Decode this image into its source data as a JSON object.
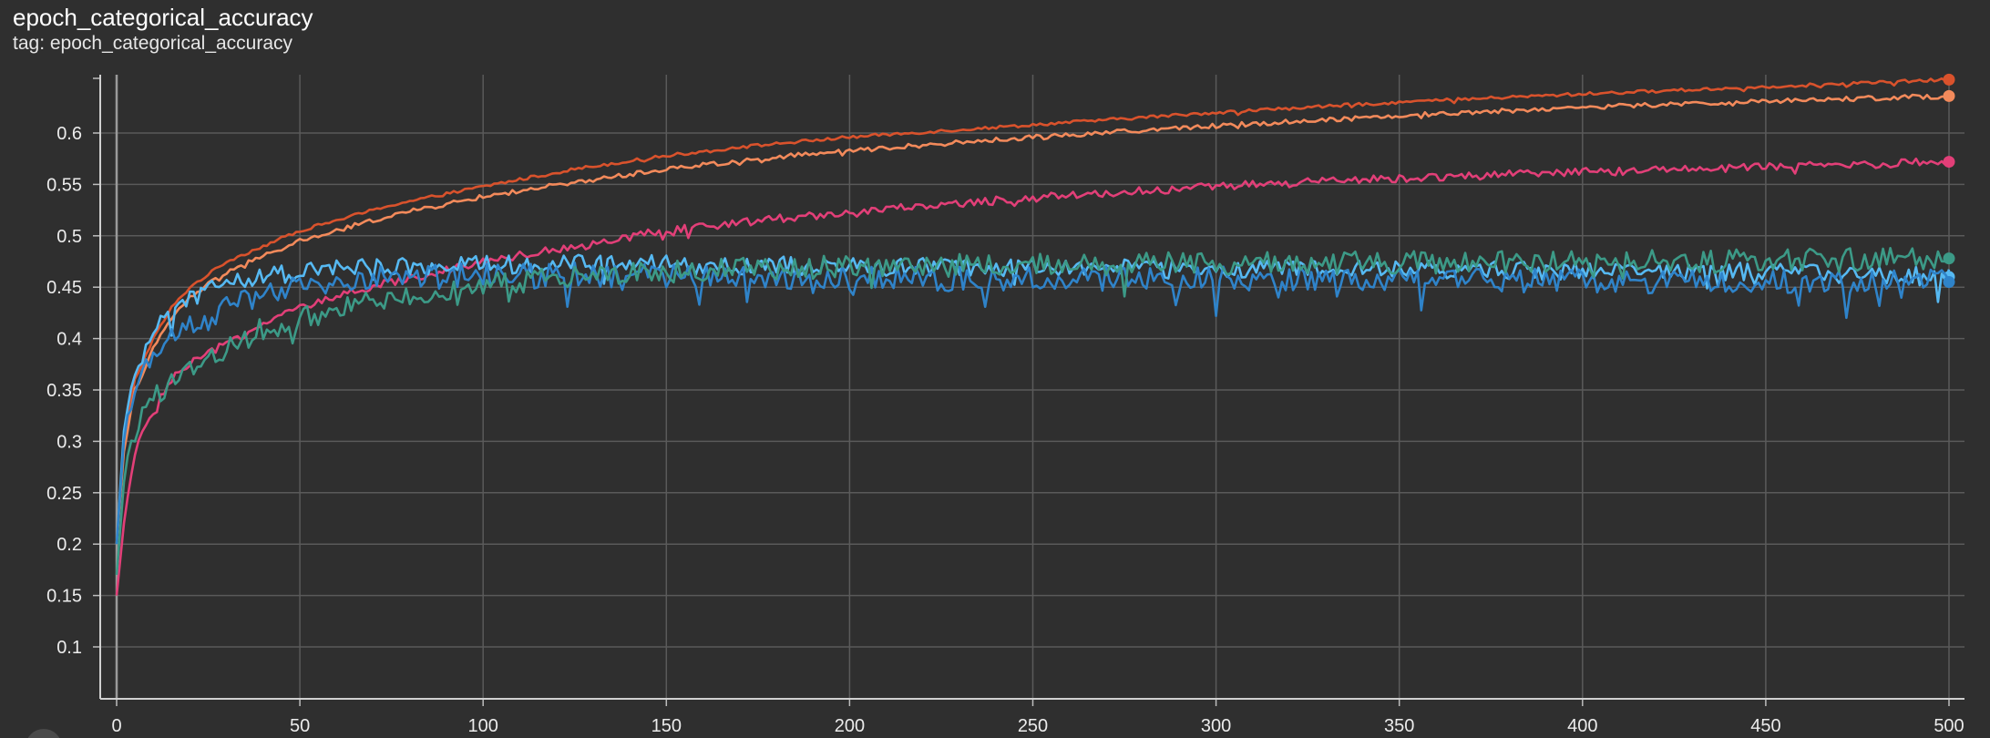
{
  "header": {
    "title": "epoch_categorical_accuracy",
    "tag_label": "tag: epoch_categorical_accuracy"
  },
  "chart_data": {
    "type": "line",
    "title": "epoch_categorical_accuracy",
    "xlabel": "",
    "ylabel": "",
    "xlim": [
      0,
      500
    ],
    "ylim": [
      0.05,
      0.65
    ],
    "x_ticks": [
      0,
      50,
      100,
      150,
      200,
      250,
      300,
      350,
      400,
      450,
      500
    ],
    "y_ticks": [
      0.1,
      0.15,
      0.2,
      0.25,
      0.3,
      0.35,
      0.4,
      0.45,
      0.5,
      0.55,
      0.6
    ],
    "y_tick_labels": [
      "0.1",
      "0.15",
      "0.2",
      "0.25",
      "0.3",
      "0.35",
      "0.4",
      "0.45",
      "0.5",
      "0.55",
      "0.6"
    ],
    "grid": true,
    "legend": "none",
    "series": [
      {
        "color": "#d9522c",
        "x": [
          0,
          2,
          5,
          10,
          15,
          20,
          30,
          40,
          50,
          60,
          75,
          100,
          125,
          150,
          175,
          200,
          250,
          300,
          350,
          400,
          450,
          500
        ],
        "values": [
          0.2,
          0.3,
          0.36,
          0.4,
          0.43,
          0.45,
          0.475,
          0.49,
          0.505,
          0.515,
          0.53,
          0.548,
          0.565,
          0.578,
          0.588,
          0.596,
          0.608,
          0.62,
          0.63,
          0.638,
          0.645,
          0.652
        ]
      },
      {
        "color": "#f38a5b",
        "x": [
          0,
          2,
          5,
          10,
          15,
          20,
          30,
          40,
          50,
          60,
          75,
          100,
          125,
          150,
          175,
          200,
          250,
          300,
          350,
          400,
          450,
          500
        ],
        "values": [
          0.2,
          0.29,
          0.35,
          0.39,
          0.42,
          0.44,
          0.465,
          0.48,
          0.495,
          0.505,
          0.52,
          0.538,
          0.552,
          0.565,
          0.575,
          0.583,
          0.596,
          0.607,
          0.617,
          0.625,
          0.631,
          0.636
        ]
      },
      {
        "color": "#e23f78",
        "x": [
          0,
          2,
          5,
          10,
          15,
          20,
          30,
          40,
          50,
          60,
          75,
          100,
          125,
          150,
          175,
          200,
          250,
          300,
          350,
          400,
          450,
          500
        ],
        "values": [
          0.15,
          0.22,
          0.29,
          0.33,
          0.36,
          0.375,
          0.395,
          0.415,
          0.43,
          0.44,
          0.455,
          0.475,
          0.49,
          0.505,
          0.515,
          0.523,
          0.537,
          0.548,
          0.556,
          0.562,
          0.567,
          0.572
        ]
      },
      {
        "color": "#56b9f2",
        "x": [
          0,
          2,
          5,
          10,
          15,
          20,
          30,
          40,
          50,
          60,
          75,
          100,
          125,
          150,
          175,
          200,
          250,
          300,
          350,
          400,
          450,
          500
        ],
        "values": [
          0.2,
          0.31,
          0.36,
          0.41,
          0.43,
          0.44,
          0.455,
          0.46,
          0.465,
          0.468,
          0.47,
          0.472,
          0.473,
          0.472,
          0.471,
          0.47,
          0.469,
          0.468,
          0.467,
          0.466,
          0.465,
          0.46
        ]
      },
      {
        "color": "#2f83c9",
        "x": [
          0,
          2,
          5,
          10,
          15,
          20,
          30,
          40,
          50,
          60,
          75,
          100,
          125,
          150,
          175,
          200,
          250,
          300,
          350,
          400,
          450,
          500
        ],
        "values": [
          0.2,
          0.3,
          0.35,
          0.39,
          0.4,
          0.41,
          0.43,
          0.44,
          0.45,
          0.455,
          0.46,
          0.462,
          0.462,
          0.461,
          0.46,
          0.459,
          0.458,
          0.458,
          0.457,
          0.456,
          0.455,
          0.455
        ]
      },
      {
        "color": "#3c9a87",
        "x": [
          0,
          2,
          5,
          10,
          15,
          20,
          30,
          40,
          50,
          60,
          75,
          100,
          125,
          150,
          175,
          200,
          250,
          300,
          350,
          400,
          450,
          500
        ],
        "values": [
          0.17,
          0.26,
          0.31,
          0.34,
          0.36,
          0.37,
          0.39,
          0.41,
          0.42,
          0.43,
          0.44,
          0.452,
          0.46,
          0.465,
          0.468,
          0.47,
          0.472,
          0.473,
          0.474,
          0.475,
          0.476,
          0.478
        ]
      }
    ]
  }
}
